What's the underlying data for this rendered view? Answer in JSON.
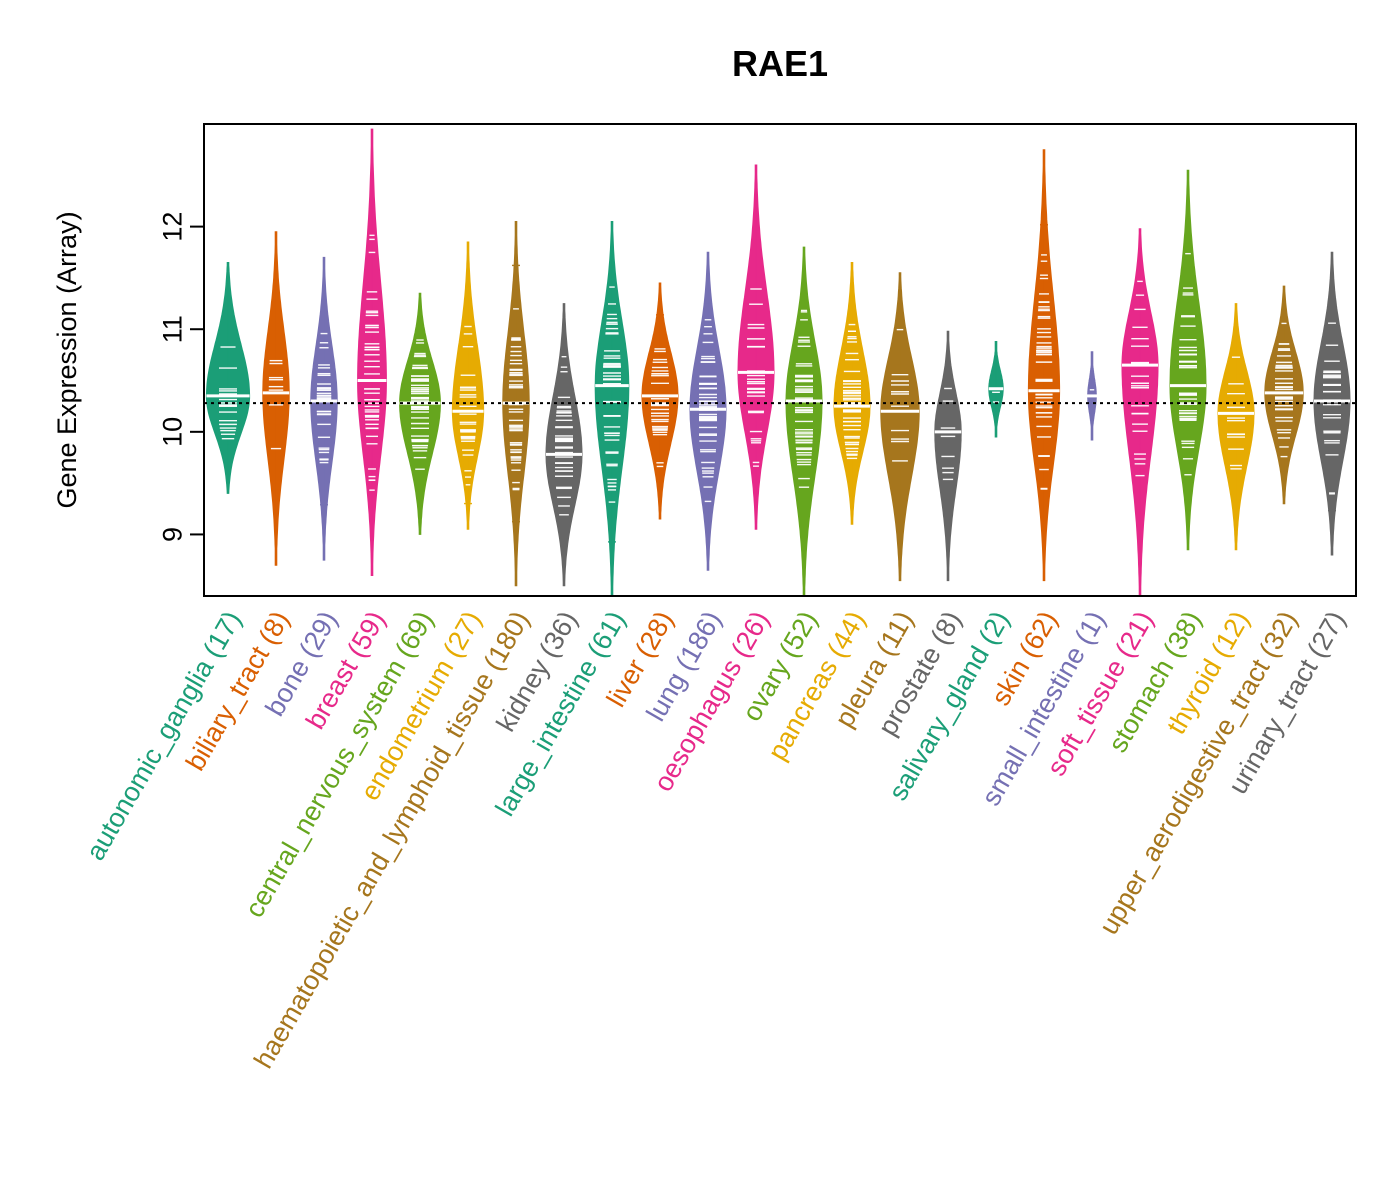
{
  "chart_data": {
    "type": "violin",
    "title": "RAE1",
    "ylabel": "Gene Expression (Array)",
    "xlabel": "",
    "ylim": [
      8.4,
      13.0
    ],
    "yticks": [
      9,
      10,
      11,
      12
    ],
    "reference_line": 10.28,
    "grid": false,
    "legend": "none",
    "categories": [
      {
        "name": "autonomic_ganglia",
        "count_label": "(17)",
        "n": 17,
        "color": "#1B9E77",
        "median": 10.35,
        "min": 9.4,
        "max": 11.65,
        "width": 0.9
      },
      {
        "name": "biliary_tract",
        "count_label": "(8)",
        "n": 8,
        "color": "#D95F02",
        "median": 10.38,
        "min": 8.7,
        "max": 11.95,
        "width": 0.55
      },
      {
        "name": "bone",
        "count_label": "(29)",
        "n": 29,
        "color": "#7570B3",
        "median": 10.3,
        "min": 8.75,
        "max": 11.7,
        "width": 0.55
      },
      {
        "name": "breast",
        "count_label": "(59)",
        "n": 59,
        "color": "#E7298A",
        "median": 10.5,
        "min": 8.6,
        "max": 12.95,
        "width": 0.6
      },
      {
        "name": "central_nervous_system",
        "count_label": "(69)",
        "n": 69,
        "color": "#66A61E",
        "median": 10.28,
        "min": 9.0,
        "max": 11.35,
        "width": 0.85
      },
      {
        "name": "endometrium",
        "count_label": "(27)",
        "n": 27,
        "color": "#E6AB02",
        "median": 10.2,
        "min": 9.05,
        "max": 11.85,
        "width": 0.65
      },
      {
        "name": "haematopoietic_and_lymphoid_tissue",
        "count_label": "(180)",
        "n": 180,
        "color": "#A6761D",
        "median": 10.28,
        "min": 8.5,
        "max": 12.05,
        "width": 0.55
      },
      {
        "name": "kidney",
        "count_label": "(36)",
        "n": 36,
        "color": "#666666",
        "median": 9.78,
        "min": 8.5,
        "max": 11.25,
        "width": 0.75
      },
      {
        "name": "large_intestine",
        "count_label": "(61)",
        "n": 61,
        "color": "#1B9E77",
        "median": 10.45,
        "min": 8.4,
        "max": 12.05,
        "width": 0.7
      },
      {
        "name": "liver",
        "count_label": "(28)",
        "n": 28,
        "color": "#D95F02",
        "median": 10.35,
        "min": 9.15,
        "max": 11.45,
        "width": 0.75
      },
      {
        "name": "lung",
        "count_label": "(186)",
        "n": 186,
        "color": "#7570B3",
        "median": 10.22,
        "min": 8.65,
        "max": 11.75,
        "width": 0.75
      },
      {
        "name": "oesophagus",
        "count_label": "(26)",
        "n": 26,
        "color": "#E7298A",
        "median": 10.58,
        "min": 9.05,
        "max": 12.6,
        "width": 0.75
      },
      {
        "name": "ovary",
        "count_label": "(52)",
        "n": 52,
        "color": "#66A61E",
        "median": 10.3,
        "min": 8.4,
        "max": 11.8,
        "width": 0.75
      },
      {
        "name": "pancreas",
        "count_label": "(44)",
        "n": 44,
        "color": "#E6AB02",
        "median": 10.25,
        "min": 9.1,
        "max": 11.65,
        "width": 0.75
      },
      {
        "name": "pleura",
        "count_label": "(11)",
        "n": 11,
        "color": "#A6761D",
        "median": 10.2,
        "min": 8.55,
        "max": 11.55,
        "width": 0.8
      },
      {
        "name": "prostate",
        "count_label": "(8)",
        "n": 8,
        "color": "#666666",
        "median": 10.0,
        "min": 8.55,
        "max": 10.98,
        "width": 0.55
      },
      {
        "name": "salivary_gland",
        "count_label": "(2)",
        "n": 2,
        "color": "#1B9E77",
        "median": 10.42,
        "min": 9.95,
        "max": 10.88,
        "width": 0.3
      },
      {
        "name": "skin",
        "count_label": "(62)",
        "n": 62,
        "color": "#D95F02",
        "median": 10.4,
        "min": 8.55,
        "max": 12.75,
        "width": 0.65
      },
      {
        "name": "small_intestine",
        "count_label": "(1)",
        "n": 1,
        "color": "#7570B3",
        "median": 10.35,
        "min": 9.92,
        "max": 10.78,
        "width": 0.18
      },
      {
        "name": "soft_tissue",
        "count_label": "(21)",
        "n": 21,
        "color": "#E7298A",
        "median": 10.65,
        "min": 8.4,
        "max": 11.98,
        "width": 0.75
      },
      {
        "name": "stomach",
        "count_label": "(38)",
        "n": 38,
        "color": "#66A61E",
        "median": 10.45,
        "min": 8.85,
        "max": 12.55,
        "width": 0.75
      },
      {
        "name": "thyroid",
        "count_label": "(12)",
        "n": 12,
        "color": "#E6AB02",
        "median": 10.18,
        "min": 8.85,
        "max": 11.25,
        "width": 0.75
      },
      {
        "name": "upper_aerodigestive_tract",
        "count_label": "(32)",
        "n": 32,
        "color": "#A6761D",
        "median": 10.38,
        "min": 9.3,
        "max": 11.42,
        "width": 0.8
      },
      {
        "name": "urinary_tract",
        "count_label": "(27)",
        "n": 27,
        "color": "#666666",
        "median": 10.3,
        "min": 8.8,
        "max": 11.75,
        "width": 0.75
      }
    ]
  }
}
